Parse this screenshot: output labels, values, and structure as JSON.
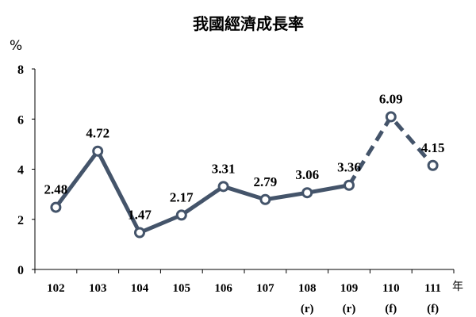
{
  "chart_data": {
    "type": "line",
    "title": "我國經濟成長率",
    "yunit": "%",
    "xunit": "年",
    "ylim": [
      0,
      8
    ],
    "yticks": [
      0,
      2,
      4,
      6,
      8
    ],
    "categories": [
      "102",
      "103",
      "104",
      "105",
      "106",
      "107",
      "108",
      "109",
      "110",
      "111"
    ],
    "category_notes": [
      "",
      "",
      "",
      "",
      "",
      "",
      "(r)",
      "(r)",
      "(f)",
      "(f)"
    ],
    "values": [
      2.48,
      4.72,
      1.47,
      2.17,
      3.31,
      2.79,
      3.06,
      3.36,
      6.09,
      4.15
    ],
    "value_labels": [
      "2.48",
      "4.72",
      "1.47",
      "2.17",
      "3.31",
      "2.79",
      "3.06",
      "3.36",
      "6.09",
      "4.15"
    ],
    "dashed_from_index": 7,
    "line_color": "#44546a",
    "grid": false
  }
}
